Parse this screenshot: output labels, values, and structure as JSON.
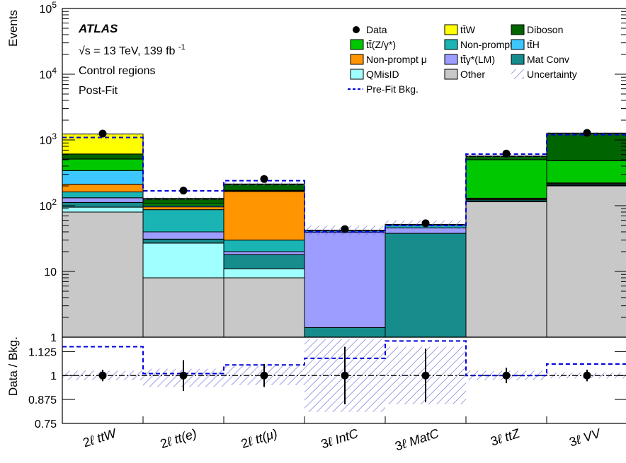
{
  "chart_data": {
    "type": "bar",
    "categories": [
      "2ℓ ttW",
      "2ℓ tt(e)",
      "2ℓ tt(μ)",
      "3ℓ IntC",
      "3ℓ MatC",
      "3ℓ ttZ",
      "3ℓ VV"
    ],
    "main": {
      "ylabel": "Events",
      "yscale": "log",
      "ylim": [
        1,
        100000
      ],
      "ytick_labels": {
        "1": "1",
        "10": "10",
        "100": "10^2",
        "1000": "10^3",
        "10000": "10^4",
        "100000": "10^5"
      },
      "stack_order": [
        "Other",
        "QMisID",
        "Mat Conv",
        "ttγ*(LM)",
        "Non-prompt e",
        "Non-prompt μ",
        "ttH",
        "tt(Z/γ*)",
        "Diboson",
        "ttW"
      ],
      "series": [
        {
          "name": "Other",
          "color": "#c8c8c8",
          "values": [
            80,
            8,
            8,
            1,
            1,
            115,
            200
          ]
        },
        {
          "name": "QMisID",
          "color": "#a0ffff",
          "values": [
            15,
            19,
            3,
            0,
            0,
            0,
            0
          ]
        },
        {
          "name": "Mat Conv",
          "color": "#178c8c",
          "values": [
            17,
            4,
            7,
            0.4,
            37,
            3,
            5
          ]
        },
        {
          "name": "ttγ*(LM)",
          "color": "#9d9dff",
          "values": [
            20,
            9,
            2,
            38,
            8,
            1,
            1
          ]
        },
        {
          "name": "Non-prompt e",
          "color": "#1ab4b4",
          "values": [
            30,
            47,
            10,
            2,
            5,
            5,
            8
          ]
        },
        {
          "name": "Non-prompt μ",
          "color": "#ff9500",
          "values": [
            50,
            9,
            135,
            1,
            1,
            4,
            6
          ]
        },
        {
          "name": "ttH",
          "color": "#3cc8ff",
          "values": [
            130,
            4,
            2,
            0,
            0,
            2,
            2
          ]
        },
        {
          "name": "tt(Z/γ*)",
          "color": "#00c800",
          "values": [
            170,
            6,
            4,
            0,
            0,
            370,
            260
          ]
        },
        {
          "name": "Diboson",
          "color": "#006400",
          "values": [
            100,
            20,
            40,
            0,
            0,
            60,
            780
          ]
        },
        {
          "name": "ttW",
          "color": "#ffff00",
          "values": [
            620,
            3,
            3,
            0,
            0,
            10,
            10
          ]
        }
      ],
      "data_points": [
        1250,
        170,
        255,
        44,
        54,
        620,
        1280
      ],
      "prefit_bkg": [
        1090,
        168,
        240,
        40,
        50,
        610,
        1200
      ],
      "uncertainty_color": "#6b6bd6",
      "uncertainty_rel": [
        0.03,
        0.05,
        0.06,
        0.17,
        0.15,
        0.03,
        0.03
      ]
    },
    "ratio": {
      "ylabel": "Data / Bkg.",
      "ylim": [
        0.75,
        1.2
      ],
      "yticks": [
        0.75,
        0.875,
        1,
        1.125
      ],
      "ytick_labels": [
        "0.75",
        "0.875",
        "1",
        "1.125"
      ],
      "ref_line": 1,
      "values": [
        1.0,
        1.0,
        1.0,
        1.0,
        1.0,
        1.0,
        1.0
      ],
      "errors": [
        0.03,
        0.08,
        0.06,
        0.15,
        0.14,
        0.04,
        0.03
      ],
      "uncertainty_bands": [
        [
          0.975,
          1.025
        ],
        [
          0.94,
          1.035
        ],
        [
          0.95,
          1.05
        ],
        [
          0.81,
          1.19
        ],
        [
          0.85,
          1.15
        ],
        [
          0.975,
          1.025
        ],
        [
          0.985,
          1.015
        ]
      ],
      "prefit_ratio": [
        1.15,
        1.01,
        1.055,
        1.09,
        1.18,
        1.0,
        1.06
      ]
    }
  },
  "labels": {
    "experiment": "ATLAS",
    "energy_line": "√s = 13 TeV, 139 fb",
    "energy_sup": "-1",
    "region_line": "Control regions",
    "fit_line": "Post-Fit"
  },
  "legend": {
    "items": [
      {
        "label": "Data",
        "kind": "marker"
      },
      {
        "label": "tt̄W",
        "kind": "fill",
        "color": "#ffff00"
      },
      {
        "label": "Diboson",
        "kind": "fill",
        "color": "#006400"
      },
      {
        "label": "tt̄(Z/γ*)",
        "kind": "fill",
        "color": "#00c800"
      },
      {
        "label": "Non-prompt e",
        "kind": "fill",
        "color": "#1ab4b4"
      },
      {
        "label": "tt̄H",
        "kind": "fill",
        "color": "#3cc8ff"
      },
      {
        "label": "Non-prompt μ",
        "kind": "fill",
        "color": "#ff9500"
      },
      {
        "label": "tt̄γ*(LM)",
        "kind": "fill",
        "color": "#9d9dff"
      },
      {
        "label": "Mat Conv",
        "kind": "fill",
        "color": "#178c8c"
      },
      {
        "label": "QMisID",
        "kind": "fill",
        "color": "#a0ffff"
      },
      {
        "label": "Other",
        "kind": "fill",
        "color": "#c8c8c8"
      },
      {
        "label": "Uncertainty",
        "kind": "hatch",
        "color": "#6b6bd6"
      },
      {
        "label": "Pre-Fit Bkg.",
        "kind": "dashed",
        "color": "#0000dd"
      }
    ]
  },
  "xaxis": {
    "labels": [
      {
        "prefix": "2",
        "suffix": "ℓ ttW"
      },
      {
        "prefix": "2",
        "suffix": "ℓ tt(e)"
      },
      {
        "prefix": "2",
        "suffix": "ℓ tt(μ)"
      },
      {
        "prefix": "3",
        "suffix": "ℓ IntC"
      },
      {
        "prefix": "3",
        "suffix": "ℓ MatC"
      },
      {
        "prefix": "3",
        "suffix": "ℓ ttZ"
      },
      {
        "prefix": "3",
        "suffix": "ℓ VV"
      }
    ]
  }
}
